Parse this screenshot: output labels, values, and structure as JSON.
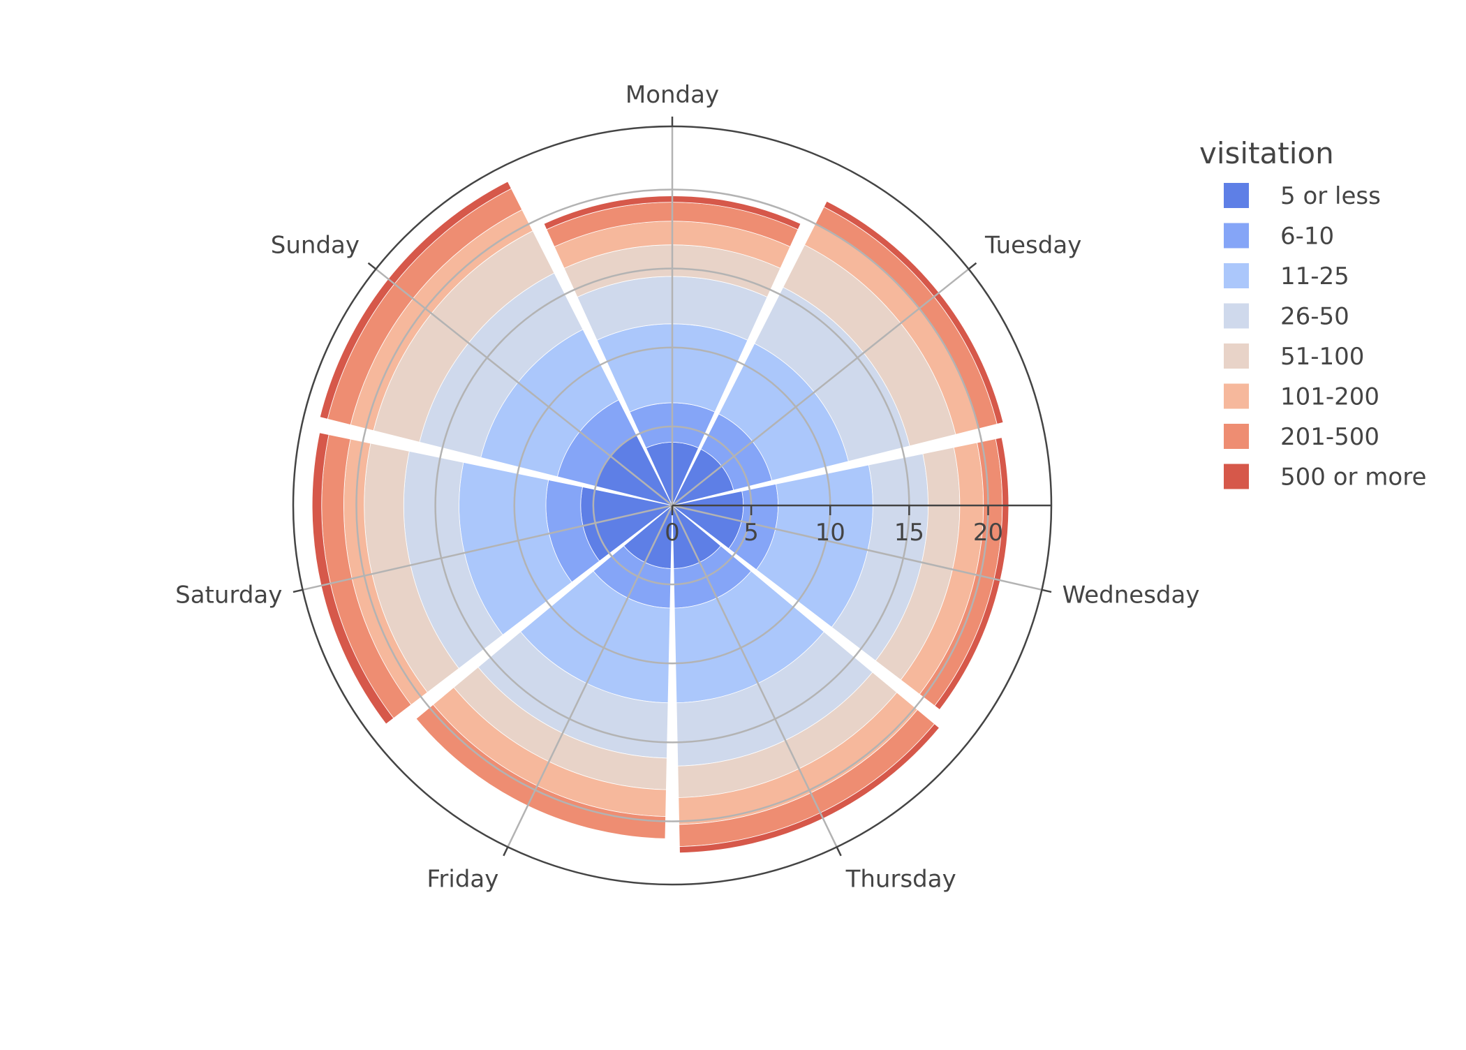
{
  "chart_data": {
    "type": "barpolar",
    "angular_categories": [
      "Monday",
      "Tuesday",
      "Wednesday",
      "Thursday",
      "Friday",
      "Saturday",
      "Sunday"
    ],
    "angular_direction": "clockwise",
    "angular_rotation_start": "Monday at top",
    "radial_range": [
      0,
      24
    ],
    "radial_ticks": [
      0,
      5,
      10,
      15,
      20
    ],
    "radial_tick_labels": [
      "0",
      "5",
      "10",
      "15",
      "20"
    ],
    "stack": "stacked",
    "legend": {
      "title": "visitation",
      "placement": "right"
    },
    "series": [
      {
        "name": "5 or less",
        "color": "#5e7fe6",
        "values": [
          4,
          4,
          4.5,
          4,
          4,
          5.8,
          5
        ]
      },
      {
        "name": "6-10",
        "color": "#85a5f7",
        "values": [
          2.5,
          2.5,
          2.2,
          2.5,
          2.5,
          2.2,
          2.5
        ]
      },
      {
        "name": "11-25",
        "color": "#abc7fb",
        "values": [
          5,
          5,
          6,
          6,
          6,
          5.5,
          5
        ]
      },
      {
        "name": "26-50",
        "color": "#cfd9ec",
        "values": [
          3,
          4,
          3.5,
          4,
          3.5,
          3.5,
          4
        ]
      },
      {
        "name": "51-100",
        "color": "#e8d3c8",
        "values": [
          2,
          3,
          2,
          2,
          2,
          2.5,
          3
        ]
      },
      {
        "name": "101-200",
        "color": "#f6b89c",
        "values": [
          1.5,
          1.5,
          1.5,
          1.7,
          1.7,
          1.3,
          1.5
        ]
      },
      {
        "name": "201-500",
        "color": "#ee8d72",
        "values": [
          1.2,
          1.2,
          1.2,
          1.4,
          1.4,
          1.4,
          1.5
        ]
      },
      {
        "name": "500 or more",
        "color": "#d6584a",
        "values": [
          0.4,
          0.4,
          0.4,
          0.4,
          0.0,
          0.6,
          0.5
        ]
      }
    ]
  }
}
